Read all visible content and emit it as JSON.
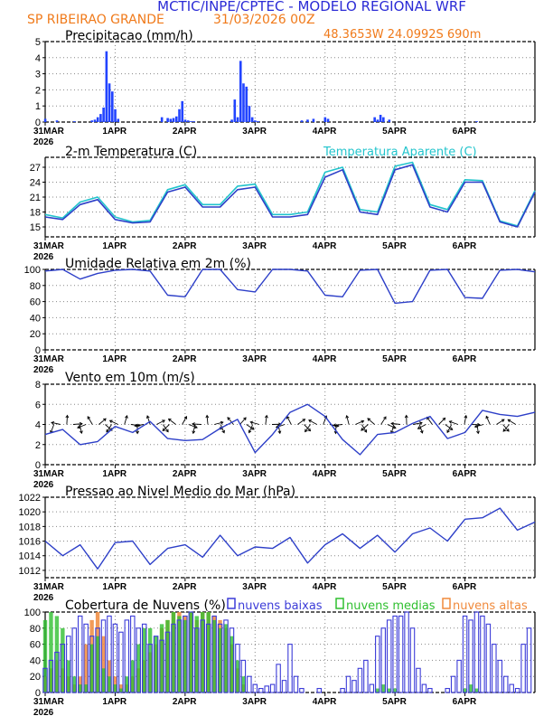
{
  "header": {
    "title": "MCTIC/INPE/CPTEC - MODELO REGIONAL WRF",
    "location": "SP RIBEIRAO GRANDE",
    "run": "31/03/2026 00Z",
    "coords": "48.3653W 24.0992S 690m"
  },
  "colors": {
    "title": "#2b2bd6",
    "accent": "#f07a1a",
    "temp_line": "#2d3fc8",
    "apparent_line": "#22c4cc",
    "precip_bar": "#2244ff",
    "low_clouds": "#3c3cd8",
    "mid_clouds": "#2fbf2f",
    "high_clouds": "#f08a3c"
  },
  "x_axis": {
    "tick_labels": [
      "31MAR",
      "1APR",
      "2APR",
      "3APR",
      "4APR",
      "5APR",
      "6APR"
    ],
    "year_label": "2026",
    "hours_per_day": 24,
    "total_hours": 168
  },
  "chart_data": [
    {
      "id": "precip",
      "type": "bar",
      "title": "Precipitacao (mm/h)",
      "ylim": [
        0,
        5
      ],
      "yticks": [
        0,
        1,
        2,
        3,
        4,
        5
      ],
      "x_hours": [
        0,
        4,
        10,
        16,
        17,
        18,
        19,
        20,
        21,
        22,
        23,
        24,
        25,
        40,
        42,
        43,
        44,
        45,
        46,
        47,
        48,
        49,
        50,
        51,
        64,
        65,
        66,
        67,
        68,
        69,
        70,
        71,
        72,
        73,
        88,
        90,
        92,
        96,
        97,
        113,
        114,
        115,
        116,
        118,
        148
      ],
      "values": [
        0.2,
        0.1,
        0.05,
        0.1,
        0.15,
        0.3,
        0.5,
        0.9,
        4.4,
        2.4,
        1.9,
        0.8,
        0.2,
        0.3,
        0.25,
        0.2,
        0.25,
        0.35,
        0.8,
        1.3,
        0.15,
        0.1,
        0.05,
        0.05,
        0.15,
        1.4,
        0.3,
        3.8,
        2.4,
        2.2,
        1.0,
        0.3,
        0.1,
        0.05,
        0.1,
        0.15,
        0.2,
        0.3,
        0.2,
        0.3,
        0.15,
        0.45,
        0.3,
        0.15,
        0.05
      ]
    },
    {
      "id": "temp",
      "type": "line",
      "title": "2-m Temperatura (C)",
      "legend": [
        "Temperatura Aparente (C)"
      ],
      "ylim": [
        13,
        29
      ],
      "yticks": [
        15,
        18,
        21,
        24,
        27
      ],
      "series": [
        {
          "name": "Temperatura (C)",
          "x_hours": [
            0,
            6,
            12,
            18,
            24,
            30,
            36,
            42,
            48,
            54,
            60,
            66,
            72,
            78,
            84,
            90,
            96,
            102,
            108,
            114,
            120,
            126,
            132,
            138,
            144,
            150,
            156,
            162,
            168
          ],
          "values": [
            17,
            16.5,
            19.5,
            20.5,
            16.5,
            15.8,
            16,
            22,
            23,
            19,
            19,
            22.5,
            23,
            17,
            17,
            17.5,
            25,
            26.5,
            18,
            17.5,
            26.5,
            27.5,
            19,
            18,
            24,
            24,
            16,
            15,
            22
          ]
        },
        {
          "name": "Temperatura Aparente (C)",
          "x_hours": [
            0,
            6,
            12,
            18,
            24,
            30,
            36,
            42,
            48,
            54,
            60,
            66,
            72,
            78,
            84,
            90,
            96,
            102,
            108,
            114,
            120,
            126,
            132,
            138,
            144,
            150,
            156,
            162,
            168
          ],
          "values": [
            17.5,
            16.8,
            20,
            21,
            17,
            16,
            16.3,
            22.5,
            23.5,
            19.5,
            19.5,
            23.2,
            23.6,
            17.5,
            17.5,
            18,
            26,
            27,
            18.5,
            18,
            27.2,
            28,
            19.5,
            18.5,
            24.5,
            24.3,
            16.2,
            15.2,
            22.3
          ]
        }
      ]
    },
    {
      "id": "rh",
      "type": "line",
      "title": "Umidade Relativa em 2m (%)",
      "ylim": [
        0,
        100
      ],
      "yticks": [
        0,
        20,
        40,
        60,
        80,
        100
      ],
      "x_hours": [
        0,
        6,
        12,
        18,
        24,
        30,
        36,
        42,
        48,
        54,
        60,
        66,
        72,
        78,
        84,
        90,
        96,
        102,
        108,
        114,
        120,
        126,
        132,
        138,
        144,
        150,
        156,
        162,
        168
      ],
      "values": [
        98,
        100,
        88,
        95,
        99,
        100,
        98,
        68,
        66,
        100,
        100,
        75,
        72,
        100,
        100,
        98,
        68,
        66,
        99,
        100,
        58,
        60,
        99,
        100,
        65,
        64,
        99,
        100,
        97
      ]
    },
    {
      "id": "wind",
      "type": "line",
      "title": "Vento em 10m (m/s)",
      "ylim": [
        0,
        8
      ],
      "yticks": [
        0,
        2,
        4,
        6,
        8
      ],
      "x_hours": [
        0,
        6,
        12,
        18,
        24,
        30,
        36,
        42,
        48,
        54,
        60,
        66,
        72,
        78,
        84,
        90,
        96,
        102,
        108,
        114,
        120,
        126,
        132,
        138,
        144,
        150,
        156,
        162,
        168
      ],
      "values": [
        3,
        3.5,
        2,
        2.3,
        3.8,
        3.2,
        4.3,
        2.6,
        2.4,
        2.5,
        3.6,
        4.5,
        1.2,
        3,
        5.2,
        6,
        4.8,
        2.5,
        1,
        3,
        3.2,
        4.1,
        4.8,
        2.6,
        3.2,
        5.4,
        5,
        4.8,
        5.2
      ]
    },
    {
      "id": "pressure",
      "type": "line",
      "title": "Pressao ao Nivel Medio do Mar (hPa)",
      "ylim": [
        1011,
        1022
      ],
      "yticks": [
        1012,
        1014,
        1016,
        1018,
        1020,
        1022
      ],
      "x_hours": [
        0,
        6,
        12,
        18,
        24,
        30,
        36,
        42,
        48,
        54,
        60,
        66,
        72,
        78,
        84,
        90,
        96,
        102,
        108,
        114,
        120,
        126,
        132,
        138,
        144,
        150,
        156,
        162,
        168
      ],
      "values": [
        1016,
        1014,
        1015.5,
        1012.2,
        1015.8,
        1016,
        1012.8,
        1015,
        1015.5,
        1013.8,
        1016.8,
        1014,
        1015.2,
        1015,
        1016.5,
        1013,
        1015.5,
        1017,
        1015,
        1016.8,
        1014.5,
        1017,
        1017.8,
        1016,
        1019,
        1019.2,
        1020.5,
        1017.5,
        1018.6
      ]
    },
    {
      "id": "clouds",
      "type": "bar",
      "title": "Cobertura de Nuvens (%)",
      "legend": [
        "nuvens baixas",
        "nuvens medias",
        "nuvens altas"
      ],
      "ylim": [
        0,
        100
      ],
      "yticks": [
        0,
        20,
        40,
        60,
        80,
        100
      ],
      "x_hours": [
        0,
        2,
        4,
        6,
        8,
        10,
        12,
        14,
        16,
        18,
        20,
        22,
        24,
        26,
        28,
        30,
        32,
        34,
        36,
        38,
        40,
        42,
        44,
        46,
        48,
        50,
        52,
        54,
        56,
        58,
        60,
        62,
        64,
        66,
        68,
        70,
        72,
        74,
        76,
        78,
        80,
        82,
        84,
        86,
        88,
        90,
        92,
        94,
        96,
        98,
        100,
        102,
        104,
        106,
        108,
        110,
        112,
        114,
        116,
        118,
        120,
        122,
        124,
        126,
        128,
        130,
        132,
        134,
        136,
        138,
        140,
        142,
        144,
        146,
        148,
        150,
        152,
        154,
        156,
        158,
        160,
        162,
        164,
        166
      ],
      "series": [
        {
          "name": "nuvens baixas",
          "values": [
            30,
            40,
            50,
            60,
            70,
            80,
            95,
            85,
            70,
            80,
            90,
            95,
            85,
            75,
            90,
            95,
            80,
            85,
            60,
            70,
            65,
            75,
            85,
            90,
            95,
            100,
            80,
            90,
            85,
            95,
            85,
            90,
            80,
            60,
            40,
            20,
            10,
            5,
            8,
            10,
            35,
            15,
            60,
            20,
            5,
            0,
            0,
            5,
            0,
            0,
            0,
            5,
            20,
            15,
            30,
            40,
            10,
            70,
            80,
            90,
            95,
            95,
            100,
            80,
            30,
            10,
            5,
            0,
            0,
            5,
            20,
            40,
            95,
            90,
            100,
            95,
            85,
            60,
            40,
            20,
            10,
            5,
            60,
            80
          ]
        },
        {
          "name": "nuvens medias",
          "values": [
            90,
            100,
            95,
            80,
            40,
            20,
            10,
            10,
            60,
            70,
            30,
            20,
            10,
            5,
            20,
            40,
            60,
            80,
            80,
            70,
            85,
            90,
            100,
            95,
            90,
            100,
            95,
            100,
            100,
            90,
            80,
            85,
            70,
            40,
            20,
            0,
            0,
            0,
            0,
            0,
            0,
            0,
            0,
            0,
            0,
            0,
            0,
            0,
            0,
            0,
            0,
            0,
            0,
            0,
            0,
            0,
            0,
            5,
            10,
            5,
            5,
            0,
            0,
            0,
            0,
            0,
            0,
            0,
            0,
            0,
            0,
            0,
            5,
            10,
            5,
            0,
            0,
            0,
            0,
            0,
            0,
            0,
            0,
            0
          ]
        },
        {
          "name": "nuvens altas",
          "values": [
            20,
            30,
            40,
            30,
            20,
            10,
            20,
            60,
            90,
            100,
            70,
            40,
            20,
            10,
            10,
            20,
            30,
            40,
            50,
            60,
            80,
            90,
            100,
            100,
            95,
            100,
            90,
            100,
            100,
            95,
            90,
            80,
            60,
            30,
            10,
            0,
            0,
            0,
            0,
            0,
            0,
            0,
            0,
            0,
            0,
            0,
            0,
            0,
            0,
            0,
            0,
            0,
            0,
            0,
            0,
            0,
            0,
            0,
            0,
            0,
            0,
            0,
            0,
            0,
            0,
            0,
            0,
            0,
            0,
            0,
            0,
            0,
            0,
            0,
            0,
            0,
            0,
            0,
            0,
            0,
            0,
            0,
            0,
            0
          ]
        }
      ]
    }
  ]
}
